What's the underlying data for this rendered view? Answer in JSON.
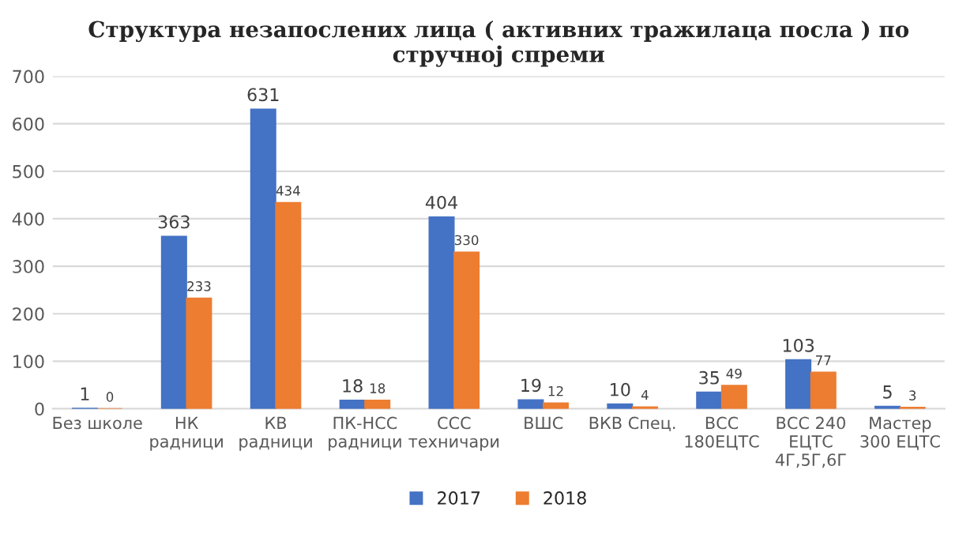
{
  "chart_data": {
    "type": "bar",
    "title": "Структура незапослених лица ( активних тражилаца посла ) по стручној спреми",
    "categories": [
      "Без школе",
      "НК\nрадници",
      "КВ\nрадници",
      "ПК-НСС\nрадници",
      "ССС\nтехничари",
      "ВШС",
      "ВКВ Спец.",
      "ВСС\n180ЕЦТС",
      "ВСС 240\nЕЦТС\n4Г,5Г,6Г",
      "Мастер\n300 ЕЦТС"
    ],
    "series": [
      {
        "name": "2017",
        "color": "#4472c4",
        "values": [
          1,
          363,
          631,
          18,
          404,
          19,
          10,
          35,
          103,
          5
        ]
      },
      {
        "name": "2018",
        "color": "#ed7d31",
        "values": [
          0,
          233,
          434,
          18,
          330,
          12,
          4,
          49,
          77,
          3
        ]
      }
    ],
    "ylim": [
      0,
      700
    ],
    "yticks": [
      0,
      100,
      200,
      300,
      400,
      500,
      600,
      700
    ],
    "grid": "y",
    "legend": "bottom",
    "data_labels": true
  }
}
